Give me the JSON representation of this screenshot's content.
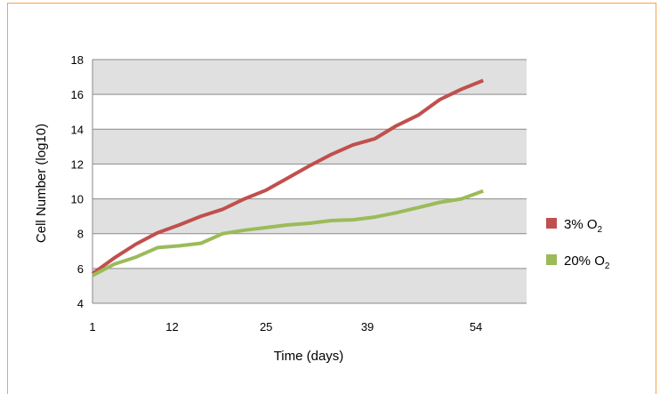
{
  "chart_data": {
    "type": "line",
    "xlabel": "Time (days)",
    "ylabel": "Cell Number (log10)",
    "x_tick_labels": [
      "1",
      "12",
      "25",
      "39",
      "54"
    ],
    "x_tick_values": [
      1,
      12,
      25,
      39,
      54
    ],
    "xlim": [
      1,
      61
    ],
    "ylim": [
      4,
      18
    ],
    "y_ticks": [
      "4",
      "6",
      "8",
      "10",
      "12",
      "14",
      "16",
      "18"
    ],
    "grid": true,
    "band_colors": [
      "#e0e0e0",
      "#ffffff"
    ],
    "legend_position": "right",
    "series": [
      {
        "name": "3% O2",
        "label_base": "3% O",
        "label_sub": "2",
        "color": "#c0504d",
        "x": [
          1,
          4,
          7,
          10,
          13,
          16,
          19,
          22,
          25,
          28,
          31,
          34,
          37,
          40,
          43,
          46,
          49,
          52,
          55,
          58,
          61
        ],
        "y": [
          5.7,
          6.6,
          7.4,
          8.05,
          8.5,
          9.0,
          9.4,
          10.0,
          10.5,
          11.2,
          11.9,
          12.55,
          13.1,
          13.45,
          14.2,
          14.8,
          15.7,
          16.3,
          16.8,
          null,
          null
        ]
      },
      {
        "name": "20% O2",
        "label_base": "20% O",
        "label_sub": "2",
        "color": "#9bbb59",
        "x": [
          1,
          4,
          7,
          10,
          13,
          16,
          19,
          22,
          25,
          28,
          31,
          34,
          37,
          40,
          43,
          46,
          49,
          52,
          55,
          58,
          61
        ],
        "y": [
          5.6,
          6.25,
          6.65,
          7.2,
          7.3,
          7.45,
          8.0,
          8.2,
          8.35,
          8.5,
          8.6,
          8.75,
          8.8,
          8.95,
          9.2,
          9.5,
          9.8,
          10.0,
          10.45,
          null,
          null
        ]
      }
    ]
  }
}
